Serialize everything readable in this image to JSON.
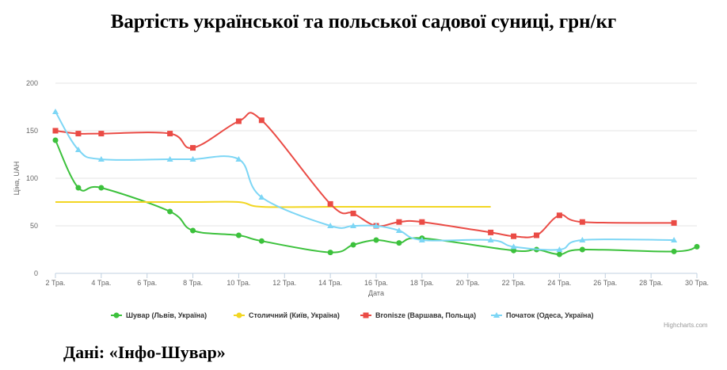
{
  "title": "Вартість української та польської садової суниці, грн/кг",
  "source": "Дані: «Інфо-Шувар»",
  "credit": "Highcharts.com",
  "chart_data": {
    "type": "line",
    "xlabel": "Дата",
    "ylabel": "Ціна, UAH",
    "xlim": [
      2,
      30
    ],
    "ylim": [
      0,
      200
    ],
    "y_ticks": [
      0,
      50,
      100,
      150,
      200
    ],
    "x_ticks": [
      {
        "x": 2,
        "label": "2 Тра."
      },
      {
        "x": 4,
        "label": "4 Тра."
      },
      {
        "x": 6,
        "label": "6 Тра."
      },
      {
        "x": 8,
        "label": "8 Тра."
      },
      {
        "x": 10,
        "label": "10 Тра."
      },
      {
        "x": 12,
        "label": "12 Тра."
      },
      {
        "x": 14,
        "label": "14 Тра."
      },
      {
        "x": 16,
        "label": "16 Тра."
      },
      {
        "x": 18,
        "label": "18 Тра."
      },
      {
        "x": 20,
        "label": "20 Тра."
      },
      {
        "x": 22,
        "label": "22 Тра."
      },
      {
        "x": 24,
        "label": "24 Тра."
      },
      {
        "x": 26,
        "label": "26 Тра."
      },
      {
        "x": 28,
        "label": "28 Тра."
      },
      {
        "x": 30,
        "label": "30 Тра."
      }
    ],
    "grid": true,
    "legend_position": "bottom",
    "series": [
      {
        "name": "Шувар (Львів, Україна)",
        "color": "#3cc13c",
        "marker": "circle",
        "points": [
          [
            2,
            140
          ],
          [
            3,
            90
          ],
          [
            4,
            90
          ],
          [
            7,
            65
          ],
          [
            8,
            45
          ],
          [
            10,
            40
          ],
          [
            11,
            34
          ],
          [
            14,
            22
          ],
          [
            15,
            30
          ],
          [
            16,
            35
          ],
          [
            17,
            32
          ],
          [
            18,
            37
          ],
          [
            22,
            24
          ],
          [
            23,
            25
          ],
          [
            24,
            20
          ],
          [
            25,
            25
          ],
          [
            29,
            23
          ],
          [
            30,
            28
          ]
        ]
      },
      {
        "name": "Столичний (Київ, Україна)",
        "color": "#f2d622",
        "marker": "none",
        "points": [
          [
            2,
            75
          ],
          [
            4,
            75
          ],
          [
            8,
            75
          ],
          [
            10,
            75
          ],
          [
            11,
            70
          ],
          [
            14,
            70
          ],
          [
            16,
            70
          ],
          [
            18,
            70
          ],
          [
            21,
            70
          ]
        ]
      },
      {
        "name": "Bronisze (Варшава, Польща)",
        "color": "#ea4b45",
        "marker": "square",
        "points": [
          [
            2,
            150
          ],
          [
            3,
            147
          ],
          [
            4,
            147
          ],
          [
            7,
            147
          ],
          [
            8,
            132
          ],
          [
            10,
            160
          ],
          [
            11,
            161
          ],
          [
            14,
            73
          ],
          [
            15,
            63
          ],
          [
            16,
            50
          ],
          [
            17,
            54
          ],
          [
            18,
            54
          ],
          [
            21,
            43
          ],
          [
            22,
            39
          ],
          [
            23,
            40
          ],
          [
            24,
            61
          ],
          [
            25,
            54
          ],
          [
            29,
            53
          ]
        ]
      },
      {
        "name": "Початок (Одеса, Україна)",
        "color": "#7dd6f5",
        "marker": "triangle",
        "points": [
          [
            2,
            170
          ],
          [
            3,
            130
          ],
          [
            4,
            120
          ],
          [
            7,
            120
          ],
          [
            8,
            120
          ],
          [
            10,
            120
          ],
          [
            11,
            80
          ],
          [
            14,
            50
          ],
          [
            15,
            50
          ],
          [
            16,
            50
          ],
          [
            17,
            45
          ],
          [
            18,
            35
          ],
          [
            21,
            35
          ],
          [
            22,
            28
          ],
          [
            24,
            25
          ],
          [
            25,
            35
          ],
          [
            29,
            35
          ]
        ]
      }
    ]
  }
}
